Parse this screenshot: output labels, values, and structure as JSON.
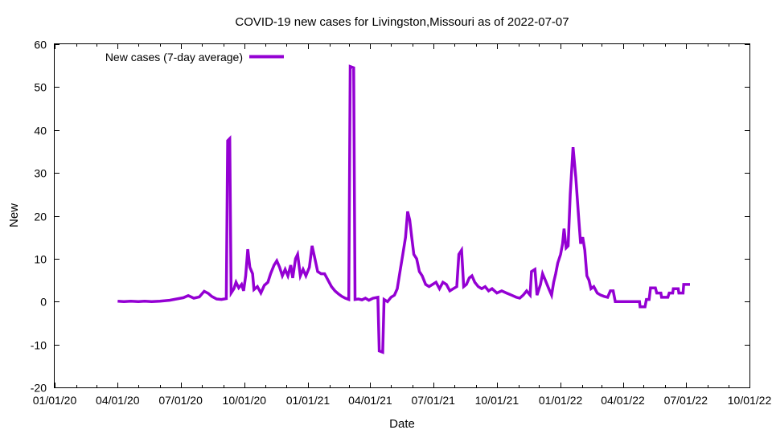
{
  "chart_data": {
    "type": "line",
    "title": "COVID-19 new cases for Livingston,Missouri as of 2022-07-07",
    "xlabel": "Date",
    "ylabel": "New",
    "ylim": [
      -20,
      60
    ],
    "xlim": [
      "2020-01-01",
      "2022-10-01"
    ],
    "grid": false,
    "legend_position": "top-left",
    "colors": {
      "series": "#9400d3",
      "axis": "#000000",
      "background": "#ffffff"
    },
    "x_ticks": [
      {
        "date": "2020-01-01",
        "label": "01/01/20"
      },
      {
        "date": "2020-04-01",
        "label": "04/01/20"
      },
      {
        "date": "2020-07-01",
        "label": "07/01/20"
      },
      {
        "date": "2020-10-01",
        "label": "10/01/20"
      },
      {
        "date": "2021-01-01",
        "label": "01/01/21"
      },
      {
        "date": "2021-04-01",
        "label": "04/01/21"
      },
      {
        "date": "2021-07-01",
        "label": "07/01/21"
      },
      {
        "date": "2021-10-01",
        "label": "10/01/21"
      },
      {
        "date": "2022-01-01",
        "label": "01/01/22"
      },
      {
        "date": "2022-04-01",
        "label": "04/01/22"
      },
      {
        "date": "2022-07-01",
        "label": "07/01/22"
      },
      {
        "date": "2022-10-01",
        "label": "10/01/22"
      }
    ],
    "y_ticks": [
      {
        "value": -20,
        "label": "-20"
      },
      {
        "value": -10,
        "label": "-10"
      },
      {
        "value": 0,
        "label": "0"
      },
      {
        "value": 10,
        "label": "10"
      },
      {
        "value": 20,
        "label": "20"
      },
      {
        "value": 30,
        "label": "30"
      },
      {
        "value": 40,
        "label": "40"
      },
      {
        "value": 50,
        "label": "50"
      },
      {
        "value": 60,
        "label": "60"
      }
    ],
    "series": [
      {
        "name": "New cases (7-day average)",
        "points": [
          [
            "2020-04-01",
            0.1
          ],
          [
            "2020-04-10",
            0.0
          ],
          [
            "2020-04-20",
            0.1
          ],
          [
            "2020-05-01",
            0.0
          ],
          [
            "2020-05-10",
            0.1
          ],
          [
            "2020-05-20",
            0.0
          ],
          [
            "2020-06-01",
            0.1
          ],
          [
            "2020-06-15",
            0.3
          ],
          [
            "2020-06-25",
            0.6
          ],
          [
            "2020-07-05",
            0.9
          ],
          [
            "2020-07-12",
            1.4
          ],
          [
            "2020-07-20",
            0.8
          ],
          [
            "2020-07-28",
            1.1
          ],
          [
            "2020-08-04",
            2.4
          ],
          [
            "2020-08-10",
            1.9
          ],
          [
            "2020-08-15",
            1.2
          ],
          [
            "2020-08-22",
            0.6
          ],
          [
            "2020-08-29",
            0.5
          ],
          [
            "2020-09-05",
            0.7
          ],
          [
            "2020-09-07",
            37.5
          ],
          [
            "2020-09-10",
            38.0
          ],
          [
            "2020-09-12",
            2.0
          ],
          [
            "2020-09-16",
            3.0
          ],
          [
            "2020-09-19",
            4.5
          ],
          [
            "2020-09-23",
            3.2
          ],
          [
            "2020-09-27",
            4.0
          ],
          [
            "2020-09-30",
            2.5
          ],
          [
            "2020-10-03",
            6.0
          ],
          [
            "2020-10-06",
            12.2
          ],
          [
            "2020-10-09",
            8.0
          ],
          [
            "2020-10-13",
            6.5
          ],
          [
            "2020-10-15",
            2.8
          ],
          [
            "2020-10-20",
            3.5
          ],
          [
            "2020-10-25",
            2.0
          ],
          [
            "2020-10-30",
            3.8
          ],
          [
            "2020-11-04",
            4.5
          ],
          [
            "2020-11-08",
            6.5
          ],
          [
            "2020-11-13",
            8.5
          ],
          [
            "2020-11-17",
            9.5
          ],
          [
            "2020-11-21",
            8.0
          ],
          [
            "2020-11-25",
            6.0
          ],
          [
            "2020-11-29",
            7.5
          ],
          [
            "2020-12-03",
            6.0
          ],
          [
            "2020-12-07",
            8.5
          ],
          [
            "2020-12-10",
            5.5
          ],
          [
            "2020-12-14",
            10.0
          ],
          [
            "2020-12-17",
            11.0
          ],
          [
            "2020-12-21",
            6.0
          ],
          [
            "2020-12-25",
            7.5
          ],
          [
            "2020-12-29",
            6.0
          ],
          [
            "2021-01-03",
            8.0
          ],
          [
            "2021-01-07",
            13.0
          ],
          [
            "2021-01-11",
            10.0
          ],
          [
            "2021-01-15",
            7.0
          ],
          [
            "2021-01-20",
            6.5
          ],
          [
            "2021-01-25",
            6.5
          ],
          [
            "2021-01-30",
            5.0
          ],
          [
            "2021-02-04",
            3.5
          ],
          [
            "2021-02-09",
            2.5
          ],
          [
            "2021-02-14",
            1.8
          ],
          [
            "2021-02-19",
            1.2
          ],
          [
            "2021-02-24",
            0.8
          ],
          [
            "2021-03-01",
            0.5
          ],
          [
            "2021-03-03",
            54.8
          ],
          [
            "2021-03-08",
            54.5
          ],
          [
            "2021-03-10",
            0.5
          ],
          [
            "2021-03-15",
            0.6
          ],
          [
            "2021-03-20",
            0.4
          ],
          [
            "2021-03-25",
            0.8
          ],
          [
            "2021-03-30",
            0.3
          ],
          [
            "2021-04-05",
            0.8
          ],
          [
            "2021-04-12",
            1.0
          ],
          [
            "2021-04-14",
            -11.5
          ],
          [
            "2021-04-19",
            -11.8
          ],
          [
            "2021-04-21",
            0.5
          ],
          [
            "2021-04-26",
            0.0
          ],
          [
            "2021-05-01",
            1.0
          ],
          [
            "2021-05-06",
            1.5
          ],
          [
            "2021-05-10",
            3.0
          ],
          [
            "2021-05-14",
            7.0
          ],
          [
            "2021-05-18",
            11.0
          ],
          [
            "2021-05-22",
            15.0
          ],
          [
            "2021-05-25",
            21.0
          ],
          [
            "2021-05-28",
            19.0
          ],
          [
            "2021-05-31",
            15.0
          ],
          [
            "2021-06-03",
            11.0
          ],
          [
            "2021-06-07",
            10.0
          ],
          [
            "2021-06-11",
            7.0
          ],
          [
            "2021-06-15",
            6.0
          ],
          [
            "2021-06-20",
            4.0
          ],
          [
            "2021-06-25",
            3.5
          ],
          [
            "2021-06-30",
            4.0
          ],
          [
            "2021-07-05",
            4.5
          ],
          [
            "2021-07-10",
            3.0
          ],
          [
            "2021-07-15",
            4.5
          ],
          [
            "2021-07-20",
            4.0
          ],
          [
            "2021-07-25",
            2.5
          ],
          [
            "2021-07-30",
            3.0
          ],
          [
            "2021-08-04",
            3.5
          ],
          [
            "2021-08-07",
            11.0
          ],
          [
            "2021-08-11",
            12.0
          ],
          [
            "2021-08-14",
            3.5
          ],
          [
            "2021-08-18",
            4.0
          ],
          [
            "2021-08-22",
            5.5
          ],
          [
            "2021-08-26",
            6.0
          ],
          [
            "2021-08-30",
            4.5
          ],
          [
            "2021-09-04",
            3.5
          ],
          [
            "2021-09-09",
            3.0
          ],
          [
            "2021-09-14",
            3.5
          ],
          [
            "2021-09-19",
            2.5
          ],
          [
            "2021-09-24",
            3.0
          ],
          [
            "2021-10-01",
            2.0
          ],
          [
            "2021-10-08",
            2.5
          ],
          [
            "2021-10-15",
            2.0
          ],
          [
            "2021-10-22",
            1.5
          ],
          [
            "2021-10-29",
            1.0
          ],
          [
            "2021-11-03",
            0.8
          ],
          [
            "2021-11-08",
            1.5
          ],
          [
            "2021-11-13",
            2.5
          ],
          [
            "2021-11-18",
            1.5
          ],
          [
            "2021-11-20",
            7.0
          ],
          [
            "2021-11-25",
            7.5
          ],
          [
            "2021-11-28",
            1.5
          ],
          [
            "2021-12-03",
            4.0
          ],
          [
            "2021-12-06",
            6.5
          ],
          [
            "2021-12-10",
            5.0
          ],
          [
            "2021-12-15",
            3.0
          ],
          [
            "2021-12-19",
            1.5
          ],
          [
            "2021-12-22",
            4.5
          ],
          [
            "2021-12-25",
            6.5
          ],
          [
            "2021-12-28",
            9.0
          ],
          [
            "2022-01-01",
            11.0
          ],
          [
            "2022-01-04",
            13.5
          ],
          [
            "2022-01-06",
            17.0
          ],
          [
            "2022-01-09",
            12.5
          ],
          [
            "2022-01-12",
            13.0
          ],
          [
            "2022-01-15",
            25.0
          ],
          [
            "2022-01-19",
            36.0
          ],
          [
            "2022-01-23",
            29.0
          ],
          [
            "2022-01-27",
            20.0
          ],
          [
            "2022-01-30",
            13.5
          ],
          [
            "2022-02-02",
            15.0
          ],
          [
            "2022-02-05",
            12.0
          ],
          [
            "2022-02-08",
            6.0
          ],
          [
            "2022-02-11",
            5.0
          ],
          [
            "2022-02-14",
            3.0
          ],
          [
            "2022-02-18",
            3.5
          ],
          [
            "2022-02-23",
            2.0
          ],
          [
            "2022-02-28",
            1.5
          ],
          [
            "2022-03-05",
            1.2
          ],
          [
            "2022-03-10",
            1.0
          ],
          [
            "2022-03-14",
            2.5
          ],
          [
            "2022-03-18",
            2.5
          ],
          [
            "2022-03-21",
            0.0
          ],
          [
            "2022-04-01",
            0.0
          ],
          [
            "2022-04-15",
            0.0
          ],
          [
            "2022-04-25",
            0.0
          ],
          [
            "2022-04-26",
            -1.2
          ],
          [
            "2022-05-03",
            -1.2
          ],
          [
            "2022-05-05",
            0.5
          ],
          [
            "2022-05-09",
            0.5
          ],
          [
            "2022-05-11",
            3.2
          ],
          [
            "2022-05-18",
            3.2
          ],
          [
            "2022-05-20",
            2.0
          ],
          [
            "2022-05-26",
            2.0
          ],
          [
            "2022-05-27",
            1.0
          ],
          [
            "2022-06-05",
            1.0
          ],
          [
            "2022-06-07",
            2.0
          ],
          [
            "2022-06-12",
            2.0
          ],
          [
            "2022-06-13",
            3.0
          ],
          [
            "2022-06-20",
            3.0
          ],
          [
            "2022-06-21",
            2.0
          ],
          [
            "2022-06-27",
            2.0
          ],
          [
            "2022-06-28",
            4.0
          ],
          [
            "2022-07-07",
            4.0
          ]
        ]
      }
    ]
  }
}
